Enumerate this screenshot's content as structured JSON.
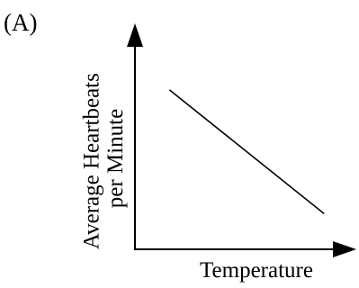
{
  "chart_data": {
    "type": "line",
    "panel_label": "(A)",
    "xlabel": "Temperature",
    "ylabel_lines": [
      "Average Heartbeats",
      "per Minute"
    ],
    "ticks_shown": false,
    "grid": false,
    "legend": "none",
    "series": [
      {
        "x": [
          0.17,
          0.93
        ],
        "y": [
          0.76,
          0.17
        ]
      }
    ],
    "xlim": [
      0,
      1
    ],
    "ylim": [
      0,
      1
    ],
    "colors": {
      "line": "#000000",
      "axes": "#000000",
      "background": "#ffffff"
    }
  }
}
